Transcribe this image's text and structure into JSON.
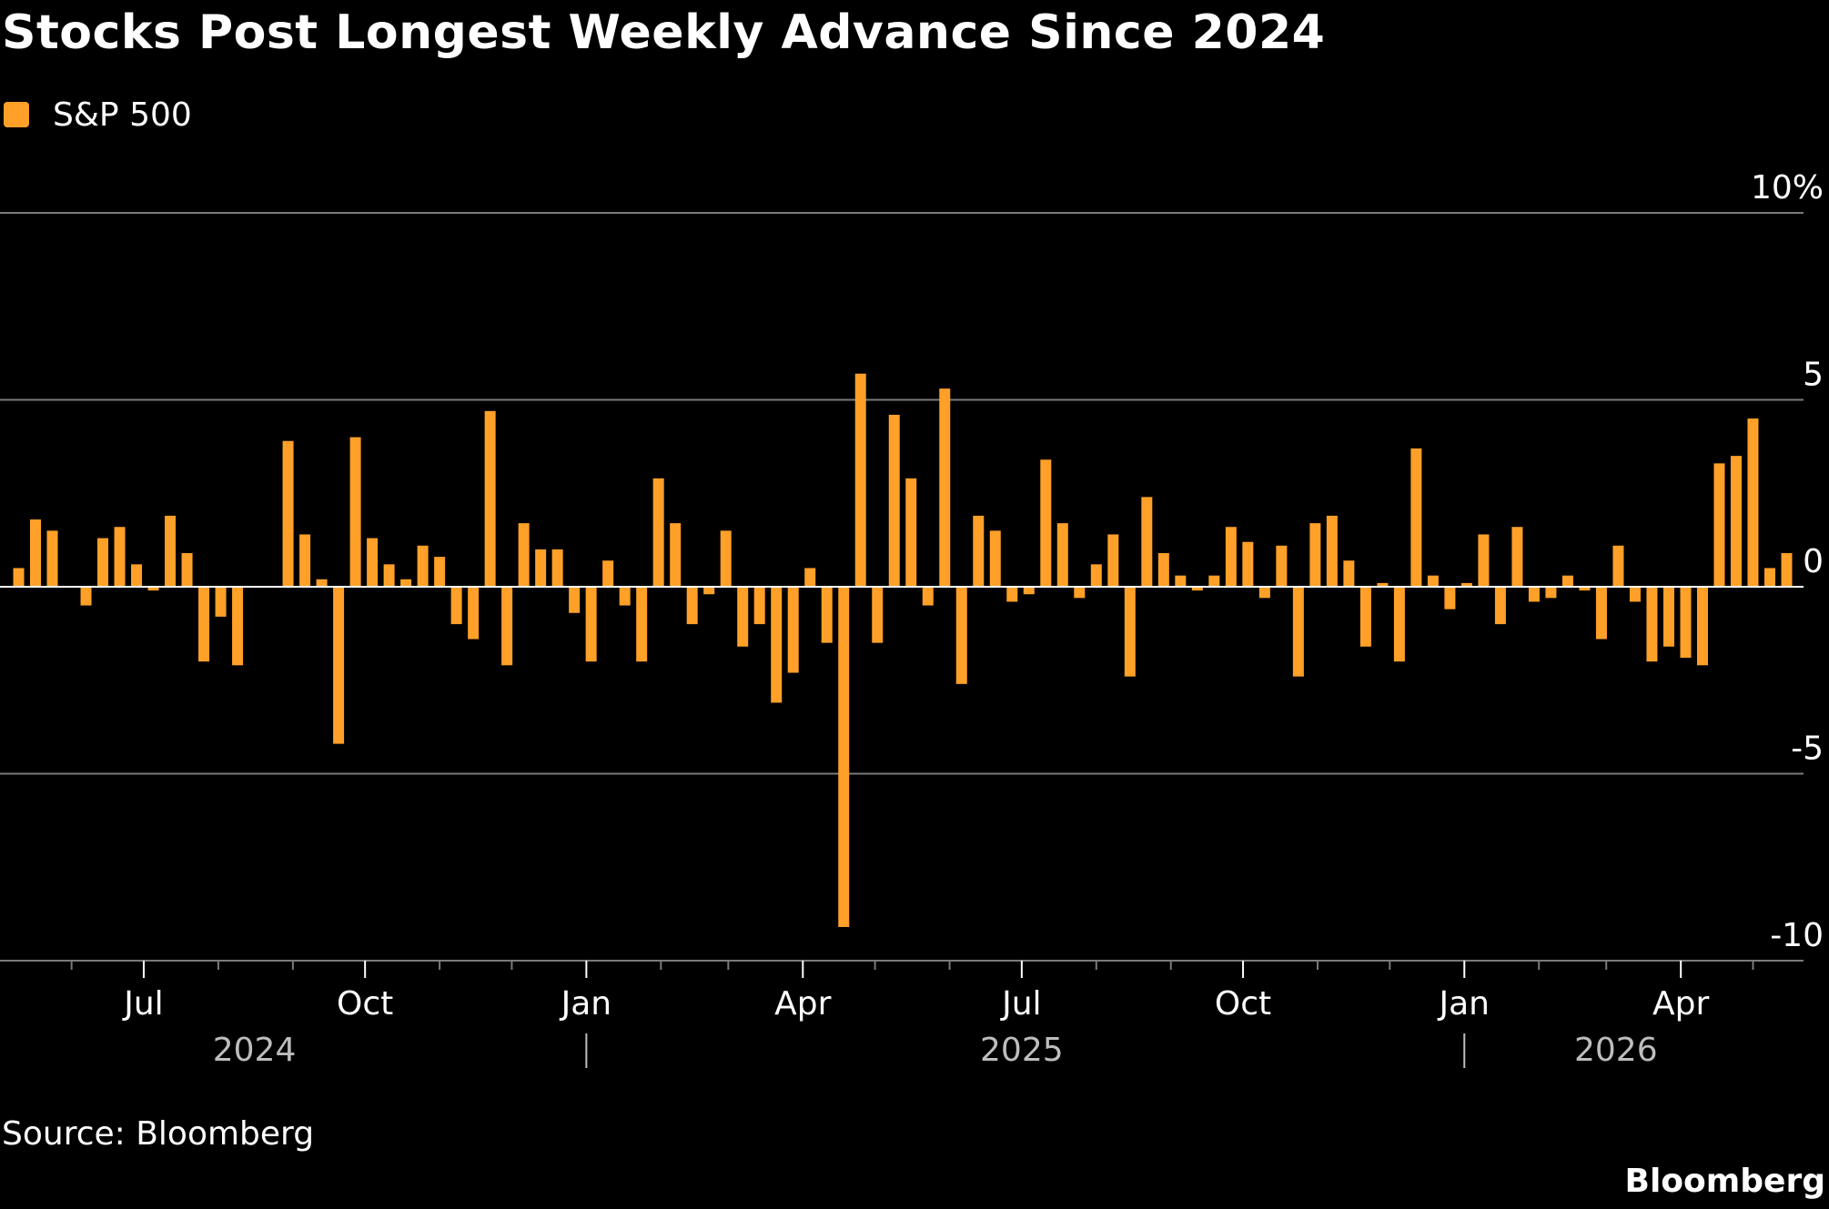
{
  "title": "Stocks Post Longest Weekly Advance Since 2024",
  "source": "Source: Bloomberg",
  "brand": "Bloomberg",
  "colors": {
    "background": "#000000",
    "bar": "#FFA028",
    "grid": "#7a7a7a",
    "text": "#ffffff",
    "year_text": "#bdbdbd"
  },
  "chart_data": {
    "type": "bar",
    "title": "Stocks Post Longest Weekly Advance Since 2024",
    "xlabel": "",
    "ylabel": "",
    "ylim": [
      -10,
      10
    ],
    "y_ticks": [
      10,
      5,
      0,
      -5,
      -10
    ],
    "y_tick_labels": [
      "10%",
      "5",
      "0",
      "-5",
      "-10"
    ],
    "grid": true,
    "legend_position": "top-left",
    "x_range": [
      "2024-05-03",
      "2026-05-22"
    ],
    "x_ticks": [
      {
        "date": "2024-07-01",
        "label": "Jul"
      },
      {
        "date": "2024-10-01",
        "label": "Oct"
      },
      {
        "date": "2025-01-01",
        "label": "Jan"
      },
      {
        "date": "2025-04-01",
        "label": "Apr"
      },
      {
        "date": "2025-07-01",
        "label": "Jul"
      },
      {
        "date": "2025-10-01",
        "label": "Oct"
      },
      {
        "date": "2026-01-01",
        "label": "Jan"
      },
      {
        "date": "2026-04-01",
        "label": "Apr"
      }
    ],
    "minor_ticks": [
      "2024-06-01",
      "2024-08-01",
      "2024-09-01",
      "2024-11-01",
      "2024-12-01",
      "2025-02-01",
      "2025-03-01",
      "2025-05-01",
      "2025-06-01",
      "2025-08-01",
      "2025-09-01",
      "2025-11-01",
      "2025-12-01",
      "2026-02-01",
      "2026-03-01",
      "2026-05-01"
    ],
    "year_labels": [
      {
        "date": "2024-08-16",
        "label": "2024"
      },
      {
        "date": "2025-07-01",
        "label": "2025"
      },
      {
        "date": "2026-03-05",
        "label": "2026"
      }
    ],
    "year_dividers": [
      "2025-01-01",
      "2026-01-01"
    ],
    "series": [
      {
        "name": "S&P 500",
        "color": "#FFA028",
        "points": [
          {
            "date": "2024-05-10",
            "value": 0.5
          },
          {
            "date": "2024-05-17",
            "value": 1.8
          },
          {
            "date": "2024-05-24",
            "value": 1.5
          },
          {
            "date": "2024-05-31",
            "value": 0.0
          },
          {
            "date": "2024-06-07",
            "value": -0.5
          },
          {
            "date": "2024-06-14",
            "value": 1.3
          },
          {
            "date": "2024-06-21",
            "value": 1.6
          },
          {
            "date": "2024-06-28",
            "value": 0.6
          },
          {
            "date": "2024-07-05",
            "value": -0.1
          },
          {
            "date": "2024-07-12",
            "value": 1.9
          },
          {
            "date": "2024-07-19",
            "value": 0.9
          },
          {
            "date": "2024-07-26",
            "value": -2.0
          },
          {
            "date": "2024-08-02",
            "value": -0.8
          },
          {
            "date": "2024-08-09",
            "value": -2.1
          },
          {
            "date": "2024-08-16",
            "value": 0.0
          },
          {
            "date": "2024-08-23",
            "value": 0.0
          },
          {
            "date": "2024-08-30",
            "value": 3.9
          },
          {
            "date": "2024-09-06",
            "value": 1.4
          },
          {
            "date": "2024-09-13",
            "value": 0.2
          },
          {
            "date": "2024-09-20",
            "value": -4.2
          },
          {
            "date": "2024-09-27",
            "value": 4.0
          },
          {
            "date": "2024-10-04",
            "value": 1.3
          },
          {
            "date": "2024-10-11",
            "value": 0.6
          },
          {
            "date": "2024-10-18",
            "value": 0.2
          },
          {
            "date": "2024-10-25",
            "value": 1.1
          },
          {
            "date": "2024-11-01",
            "value": 0.8
          },
          {
            "date": "2024-11-08",
            "value": -1.0
          },
          {
            "date": "2024-11-15",
            "value": -1.4
          },
          {
            "date": "2024-11-22",
            "value": 4.7
          },
          {
            "date": "2024-11-29",
            "value": -2.1
          },
          {
            "date": "2024-12-06",
            "value": 1.7
          },
          {
            "date": "2024-12-13",
            "value": 1.0
          },
          {
            "date": "2024-12-20",
            "value": 1.0
          },
          {
            "date": "2024-12-27",
            "value": -0.7
          },
          {
            "date": "2025-01-03",
            "value": -2.0
          },
          {
            "date": "2025-01-10",
            "value": 0.7
          },
          {
            "date": "2025-01-17",
            "value": -0.5
          },
          {
            "date": "2025-01-24",
            "value": -2.0
          },
          {
            "date": "2025-01-31",
            "value": 2.9
          },
          {
            "date": "2025-02-07",
            "value": 1.7
          },
          {
            "date": "2025-02-14",
            "value": -1.0
          },
          {
            "date": "2025-02-21",
            "value": -0.2
          },
          {
            "date": "2025-02-28",
            "value": 1.5
          },
          {
            "date": "2025-03-07",
            "value": -1.6
          },
          {
            "date": "2025-03-14",
            "value": -1.0
          },
          {
            "date": "2025-03-21",
            "value": -3.1
          },
          {
            "date": "2025-03-28",
            "value": -2.3
          },
          {
            "date": "2025-04-04",
            "value": 0.5
          },
          {
            "date": "2025-04-11",
            "value": -1.5
          },
          {
            "date": "2025-04-18",
            "value": -9.1
          },
          {
            "date": "2025-04-25",
            "value": 5.7
          },
          {
            "date": "2025-05-02",
            "value": -1.5
          },
          {
            "date": "2025-05-09",
            "value": 4.6
          },
          {
            "date": "2025-05-16",
            "value": 2.9
          },
          {
            "date": "2025-05-23",
            "value": -0.5
          },
          {
            "date": "2025-05-30",
            "value": 5.3
          },
          {
            "date": "2025-06-06",
            "value": -2.6
          },
          {
            "date": "2025-06-13",
            "value": 1.9
          },
          {
            "date": "2025-06-20",
            "value": 1.5
          },
          {
            "date": "2025-06-27",
            "value": -0.4
          },
          {
            "date": "2025-07-04",
            "value": -0.2
          },
          {
            "date": "2025-07-11",
            "value": 3.4
          },
          {
            "date": "2025-07-18",
            "value": 1.7
          },
          {
            "date": "2025-07-25",
            "value": -0.3
          },
          {
            "date": "2025-08-01",
            "value": 0.6
          },
          {
            "date": "2025-08-08",
            "value": 1.4
          },
          {
            "date": "2025-08-15",
            "value": -2.4
          },
          {
            "date": "2025-08-22",
            "value": 2.4
          },
          {
            "date": "2025-08-29",
            "value": 0.9
          },
          {
            "date": "2025-09-05",
            "value": 0.3
          },
          {
            "date": "2025-09-12",
            "value": -0.1
          },
          {
            "date": "2025-09-19",
            "value": 0.3
          },
          {
            "date": "2025-09-26",
            "value": 1.6
          },
          {
            "date": "2025-10-03",
            "value": 1.2
          },
          {
            "date": "2025-10-10",
            "value": -0.3
          },
          {
            "date": "2025-10-17",
            "value": 1.1
          },
          {
            "date": "2025-10-24",
            "value": -2.4
          },
          {
            "date": "2025-10-31",
            "value": 1.7
          },
          {
            "date": "2025-11-07",
            "value": 1.9
          },
          {
            "date": "2025-11-14",
            "value": 0.7
          },
          {
            "date": "2025-11-21",
            "value": -1.6
          },
          {
            "date": "2025-11-28",
            "value": 0.1
          },
          {
            "date": "2025-12-05",
            "value": -2.0
          },
          {
            "date": "2025-12-12",
            "value": 3.7
          },
          {
            "date": "2025-12-19",
            "value": 0.3
          },
          {
            "date": "2025-12-26",
            "value": -0.6
          },
          {
            "date": "2026-01-02",
            "value": 0.1
          },
          {
            "date": "2026-01-09",
            "value": 1.4
          },
          {
            "date": "2026-01-16",
            "value": -1.0
          },
          {
            "date": "2026-01-23",
            "value": 1.6
          },
          {
            "date": "2026-01-30",
            "value": -0.4
          },
          {
            "date": "2026-02-06",
            "value": -0.3
          },
          {
            "date": "2026-02-13",
            "value": 0.3
          },
          {
            "date": "2026-02-20",
            "value": -0.1
          },
          {
            "date": "2026-02-27",
            "value": -1.4
          },
          {
            "date": "2026-03-06",
            "value": 1.1
          },
          {
            "date": "2026-03-13",
            "value": -0.4
          },
          {
            "date": "2026-03-20",
            "value": -2.0
          },
          {
            "date": "2026-03-27",
            "value": -1.6
          },
          {
            "date": "2026-04-03",
            "value": -1.9
          },
          {
            "date": "2026-04-10",
            "value": -2.1
          },
          {
            "date": "2026-04-17",
            "value": 3.3
          },
          {
            "date": "2026-04-24",
            "value": 3.5
          },
          {
            "date": "2026-05-01",
            "value": 4.5
          },
          {
            "date": "2026-05-08",
            "value": 0.5
          },
          {
            "date": "2026-05-15",
            "value": 0.9
          }
        ]
      }
    ]
  }
}
